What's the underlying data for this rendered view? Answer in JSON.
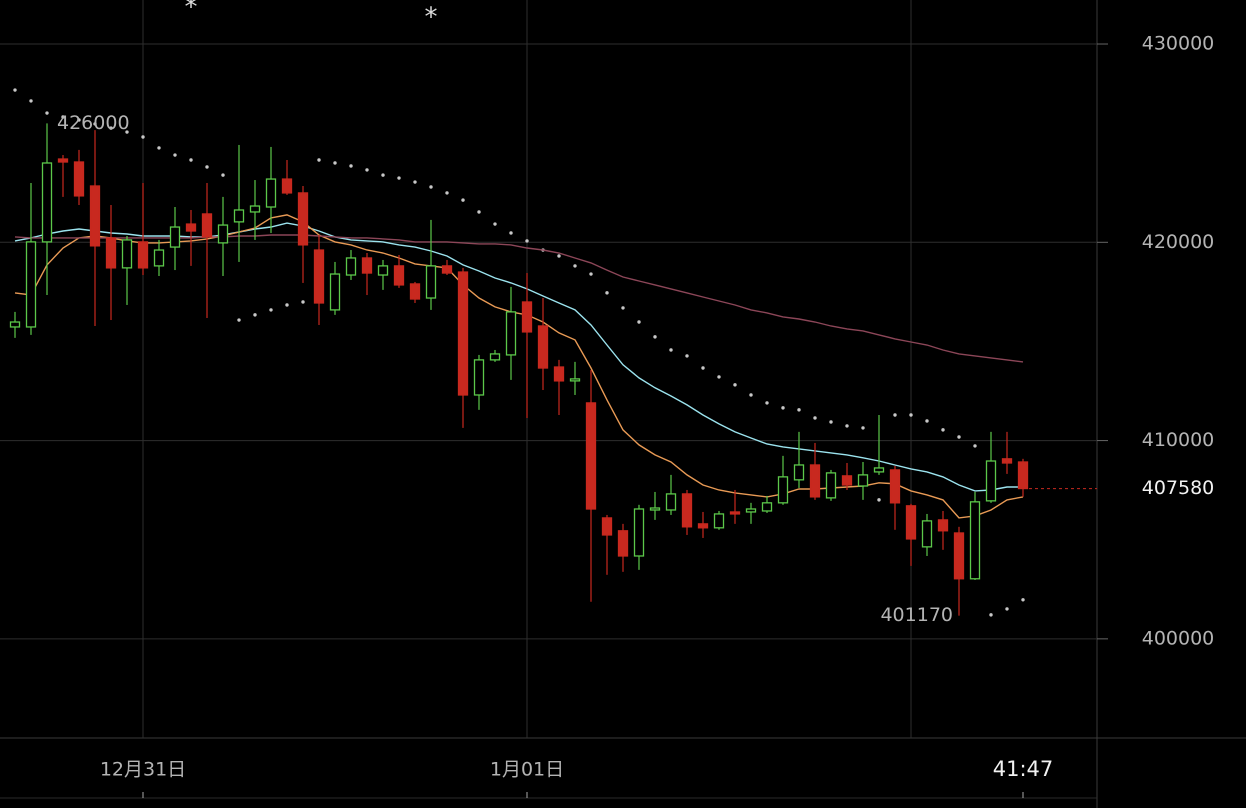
{
  "chart_data": {
    "type": "candlestick",
    "categories": [
      null,
      null,
      null,
      null,
      null,
      null,
      null,
      null,
      "12月31日",
      null,
      null,
      null,
      null,
      null,
      null,
      null,
      null,
      null,
      null,
      null,
      null,
      null,
      null,
      null,
      null,
      null,
      null,
      null,
      null,
      null,
      null,
      null,
      "1月01日",
      null,
      null,
      null,
      null,
      null,
      null,
      null,
      null,
      null,
      null,
      null,
      null,
      null,
      null,
      null,
      null,
      null,
      null,
      null,
      null,
      null,
      null,
      null,
      null,
      null,
      null,
      null,
      null,
      null,
      null,
      "41:47"
    ],
    "candles": {
      "up_color": "#5cc84a",
      "down_color": "#c8291f",
      "open": [
        415730,
        415730,
        420020,
        424200,
        424050,
        422840,
        420220,
        418710,
        420020,
        418810,
        419760,
        420920,
        421430,
        419970,
        421030,
        421530,
        421780,
        423190,
        422490,
        419610,
        416590,
        418350,
        419210,
        418350,
        418810,
        417900,
        417190,
        418810,
        418500,
        412300,
        414070,
        414320,
        416990,
        415780,
        413710,
        413010,
        411900,
        406100,
        405450,
        404180,
        406500,
        406500,
        407310,
        405800,
        405600,
        406400,
        406400,
        406450,
        406860,
        408020,
        408770,
        407110,
        408220,
        407710,
        408420,
        408520,
        406710,
        404640,
        406000,
        405340,
        403030,
        406960,
        409080,
        408920
      ],
      "high": [
        416490,
        422990,
        426000,
        424400,
        424660,
        425660,
        421880,
        420320,
        422990,
        420120,
        421780,
        421630,
        422990,
        422290,
        424910,
        423140,
        424810,
        424150,
        422840,
        420370,
        419010,
        419610,
        419460,
        419110,
        419360,
        418000,
        421130,
        419110,
        418710,
        414320,
        414570,
        417750,
        418450,
        417190,
        414070,
        413970,
        413560,
        406250,
        405800,
        406760,
        407410,
        408270,
        407510,
        406400,
        406450,
        407510,
        406860,
        407210,
        409230,
        410440,
        409880,
        408520,
        408870,
        408920,
        411290,
        408720,
        406810,
        406300,
        406450,
        405650,
        407410,
        410440,
        410440,
        409080
      ],
      "low": [
        415180,
        415330,
        417340,
        422290,
        421880,
        415780,
        416080,
        416840,
        418350,
        418300,
        418600,
        418810,
        416180,
        418300,
        419010,
        420120,
        420470,
        422390,
        417950,
        415830,
        416340,
        418100,
        417340,
        417600,
        417700,
        416940,
        416590,
        418350,
        410640,
        411550,
        413970,
        413060,
        411140,
        412550,
        411290,
        412300,
        401870,
        403230,
        403380,
        403480,
        406000,
        406250,
        405240,
        405090,
        405500,
        405800,
        405800,
        406350,
        406760,
        407610,
        407010,
        406960,
        407510,
        407010,
        408270,
        405500,
        403680,
        404180,
        404490,
        401170,
        402970,
        406860,
        408320,
        407160
      ],
      "close": [
        415980,
        420020,
        424000,
        424050,
        422340,
        419820,
        418710,
        420120,
        418710,
        419610,
        420770,
        420570,
        420270,
        420870,
        421630,
        421830,
        423190,
        422490,
        419870,
        416940,
        418400,
        419210,
        418450,
        418810,
        417850,
        417140,
        418810,
        418450,
        412300,
        414070,
        414370,
        416490,
        415480,
        413660,
        413010,
        413110,
        406550,
        405240,
        404180,
        406550,
        406600,
        407310,
        405650,
        405600,
        406300,
        406300,
        406550,
        406860,
        408170,
        408770,
        407160,
        408370,
        407760,
        408270,
        408620,
        406860,
        405040,
        405950,
        405450,
        403030,
        406910,
        408970,
        408870,
        407580
      ]
    },
    "series": [
      {
        "color": "#9be3ee",
        "values": [
          420070,
          420220,
          420420,
          420570,
          420670,
          420570,
          420470,
          420420,
          420320,
          420320,
          420320,
          420270,
          420270,
          420370,
          420520,
          420670,
          420770,
          420970,
          420820,
          420570,
          420270,
          420120,
          420070,
          420020,
          419870,
          419760,
          419560,
          419310,
          418860,
          418550,
          418200,
          417950,
          417650,
          417290,
          416940,
          416590,
          415830,
          414820,
          413820,
          413160,
          412660,
          412250,
          411800,
          411290,
          410840,
          410440,
          410130,
          409830,
          409680,
          409580,
          409480,
          409380,
          409280,
          409130,
          408970,
          408770,
          408570,
          408420,
          408170,
          407760,
          407460,
          407510,
          407660,
          407660
        ]
      },
      {
        "color": "#e89a55",
        "values": [
          417450,
          417340,
          418860,
          419710,
          420220,
          420320,
          420220,
          420070,
          419970,
          419970,
          420020,
          420070,
          420170,
          420320,
          420520,
          420720,
          421230,
          421380,
          421030,
          420370,
          420020,
          419870,
          419610,
          419460,
          419210,
          418910,
          418810,
          418710,
          417850,
          417190,
          416740,
          416490,
          416340,
          415980,
          415430,
          415080,
          413660,
          412050,
          410540,
          409780,
          409280,
          408920,
          408270,
          407760,
          407510,
          407360,
          407260,
          407160,
          407310,
          407560,
          407560,
          407610,
          407660,
          407710,
          407870,
          407820,
          407460,
          407260,
          407010,
          406100,
          406200,
          406500,
          407010,
          407160
        ]
      },
      {
        "color": "#8c4658",
        "values": [
          420270,
          420220,
          420220,
          420220,
          420220,
          420220,
          420220,
          420220,
          420220,
          420220,
          420220,
          420220,
          420270,
          420270,
          420320,
          420320,
          420370,
          420370,
          420370,
          420320,
          420270,
          420220,
          420220,
          420170,
          420120,
          420020,
          420020,
          420020,
          419970,
          419920,
          419920,
          419870,
          419710,
          419610,
          419460,
          419210,
          418960,
          418600,
          418250,
          418050,
          417850,
          417650,
          417450,
          417240,
          417040,
          416840,
          416590,
          416440,
          416240,
          416130,
          415980,
          415780,
          415630,
          415530,
          415330,
          415130,
          414970,
          414820,
          414570,
          414370,
          414270,
          414170,
          414070,
          413970
        ]
      }
    ],
    "sar": {
      "color": "#c8c8c8",
      "values": [
        427680,
        427130,
        426520,
        426320,
        426170,
        425970,
        425760,
        425560,
        425310,
        424760,
        424400,
        424150,
        423800,
        423390,
        416080,
        416340,
        416590,
        416840,
        416990,
        424150,
        424000,
        423850,
        423650,
        423390,
        423240,
        423040,
        422790,
        422490,
        422130,
        421530,
        420920,
        420470,
        420070,
        419610,
        419310,
        418810,
        418400,
        417450,
        416690,
        415980,
        415230,
        414570,
        414270,
        413660,
        413210,
        412810,
        412300,
        411900,
        411650,
        411550,
        411140,
        410940,
        410740,
        410640,
        407010,
        411290,
        411290,
        410990,
        410540,
        410180,
        409730,
        401210,
        401510,
        401970
      ]
    },
    "signal_markers": {
      "label": "*",
      "at": [
        11,
        26
      ]
    },
    "max_label": 426000,
    "min_label": 401170,
    "last_price": 407580,
    "ylim": [
      395000,
      432220
    ],
    "yticks": [
      400000,
      410000,
      420000,
      430000
    ],
    "grid": true
  }
}
